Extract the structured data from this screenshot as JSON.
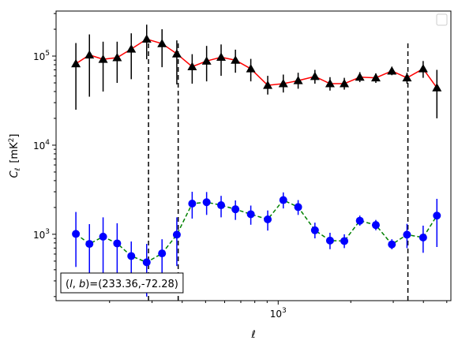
{
  "chart_data": {
    "type": "scatter",
    "xlabel": "ℓ",
    "ylabel": "C_ℓ  [mK²]",
    "ylabel_parts": {
      "main": "C",
      "sub": "ℓ",
      "unit": "[mK",
      "unit_sup": "2",
      "unit_close": "]"
    },
    "xscale": "log",
    "yscale": "log",
    "xlim": [
      120,
      5200
    ],
    "ylim": [
      180,
      320000
    ],
    "x_tick_labels": [
      {
        "value": 1000,
        "base": "10",
        "exp": "3"
      }
    ],
    "y_tick_labels": [
      {
        "value": 1000,
        "base": "10",
        "exp": "3"
      },
      {
        "value": 10000,
        "base": "10",
        "exp": "4"
      },
      {
        "value": 100000,
        "base": "10",
        "exp": "5"
      }
    ],
    "grid": false,
    "legend": {
      "placement": "top-right",
      "entries": []
    },
    "vertical_lines": [
      290,
      385,
      3450
    ],
    "annotation": "(l, b)=(233.36,-72.28)",
    "annotation_parts": {
      "l": "l",
      "b": "b",
      "value": "(233.36,-72.28)"
    },
    "series": [
      {
        "marker": "triangle",
        "marker_color": "#000000",
        "line_color": "#ff0000",
        "line_style": "solid",
        "errorbar_color": "#000000",
        "points": [
          {
            "x": 145,
            "y": 82000,
            "lo": 25000,
            "hi": 140000
          },
          {
            "x": 165,
            "y": 103000,
            "lo": 35000,
            "hi": 175000
          },
          {
            "x": 188,
            "y": 92000,
            "lo": 40000,
            "hi": 145000
          },
          {
            "x": 215,
            "y": 96000,
            "lo": 50000,
            "hi": 145000
          },
          {
            "x": 246,
            "y": 120000,
            "lo": 55000,
            "hi": 180000
          },
          {
            "x": 285,
            "y": 155000,
            "lo": 92000,
            "hi": 225000
          },
          {
            "x": 330,
            "y": 138000,
            "lo": 75000,
            "hi": 200000
          },
          {
            "x": 380,
            "y": 106000,
            "lo": 48000,
            "hi": 150000
          },
          {
            "x": 440,
            "y": 76000,
            "lo": 49000,
            "hi": 105000
          },
          {
            "x": 505,
            "y": 88000,
            "lo": 52000,
            "hi": 130000
          },
          {
            "x": 580,
            "y": 97000,
            "lo": 60000,
            "hi": 135000
          },
          {
            "x": 665,
            "y": 90000,
            "lo": 65000,
            "hi": 118000
          },
          {
            "x": 770,
            "y": 72000,
            "lo": 52000,
            "hi": 93000
          },
          {
            "x": 905,
            "y": 47000,
            "lo": 37000,
            "hi": 60000
          },
          {
            "x": 1050,
            "y": 49000,
            "lo": 39000,
            "hi": 62000
          },
          {
            "x": 1210,
            "y": 53000,
            "lo": 43000,
            "hi": 65000
          },
          {
            "x": 1420,
            "y": 59000,
            "lo": 49000,
            "hi": 70000
          },
          {
            "x": 1640,
            "y": 49000,
            "lo": 41000,
            "hi": 58000
          },
          {
            "x": 1880,
            "y": 49000,
            "lo": 42000,
            "hi": 57000
          },
          {
            "x": 2180,
            "y": 58000,
            "lo": 51000,
            "hi": 66000
          },
          {
            "x": 2540,
            "y": 57000,
            "lo": 50000,
            "hi": 64000
          },
          {
            "x": 2960,
            "y": 68000,
            "lo": 61000,
            "hi": 76000
          },
          {
            "x": 3420,
            "y": 57000,
            "lo": 49000,
            "hi": 65000
          },
          {
            "x": 3990,
            "y": 72000,
            "lo": 57000,
            "hi": 88000
          },
          {
            "x": 4550,
            "y": 44000,
            "lo": 20000,
            "hi": 70000
          }
        ]
      },
      {
        "marker": "circle",
        "marker_color": "#0000ff",
        "line_color": "#008000",
        "line_style": "dashed",
        "errorbar_color": "#0000ff",
        "points": [
          {
            "x": 145,
            "y": 1010,
            "lo": 430,
            "hi": 1780
          },
          {
            "x": 165,
            "y": 780,
            "lo": 280,
            "hi": 1300
          },
          {
            "x": 188,
            "y": 940,
            "lo": 330,
            "hi": 1550
          },
          {
            "x": 215,
            "y": 790,
            "lo": 240,
            "hi": 1330
          },
          {
            "x": 246,
            "y": 570,
            "lo": 330,
            "hi": 830
          },
          {
            "x": 285,
            "y": 485,
            "lo": 200,
            "hi": 780
          },
          {
            "x": 330,
            "y": 610,
            "lo": 330,
            "hi": 880
          },
          {
            "x": 380,
            "y": 990,
            "lo": 440,
            "hi": 1550
          },
          {
            "x": 440,
            "y": 2210,
            "lo": 1500,
            "hi": 3000
          },
          {
            "x": 505,
            "y": 2290,
            "lo": 1650,
            "hi": 2980
          },
          {
            "x": 580,
            "y": 2120,
            "lo": 1550,
            "hi": 2700
          },
          {
            "x": 665,
            "y": 1910,
            "lo": 1450,
            "hi": 2400
          },
          {
            "x": 770,
            "y": 1680,
            "lo": 1280,
            "hi": 2100
          },
          {
            "x": 905,
            "y": 1470,
            "lo": 1100,
            "hi": 1850
          },
          {
            "x": 1050,
            "y": 2420,
            "lo": 1950,
            "hi": 2950
          },
          {
            "x": 1210,
            "y": 2020,
            "lo": 1650,
            "hi": 2420
          },
          {
            "x": 1420,
            "y": 1110,
            "lo": 900,
            "hi": 1350
          },
          {
            "x": 1640,
            "y": 850,
            "lo": 680,
            "hi": 1040
          },
          {
            "x": 1880,
            "y": 840,
            "lo": 700,
            "hi": 1000
          },
          {
            "x": 2180,
            "y": 1420,
            "lo": 1250,
            "hi": 1620
          },
          {
            "x": 2540,
            "y": 1270,
            "lo": 1110,
            "hi": 1450
          },
          {
            "x": 2960,
            "y": 770,
            "lo": 680,
            "hi": 880
          },
          {
            "x": 3420,
            "y": 990,
            "lo": 700,
            "hi": 1310
          },
          {
            "x": 3990,
            "y": 920,
            "lo": 620,
            "hi": 1250
          },
          {
            "x": 4550,
            "y": 1620,
            "lo": 720,
            "hi": 2500
          }
        ]
      }
    ]
  }
}
